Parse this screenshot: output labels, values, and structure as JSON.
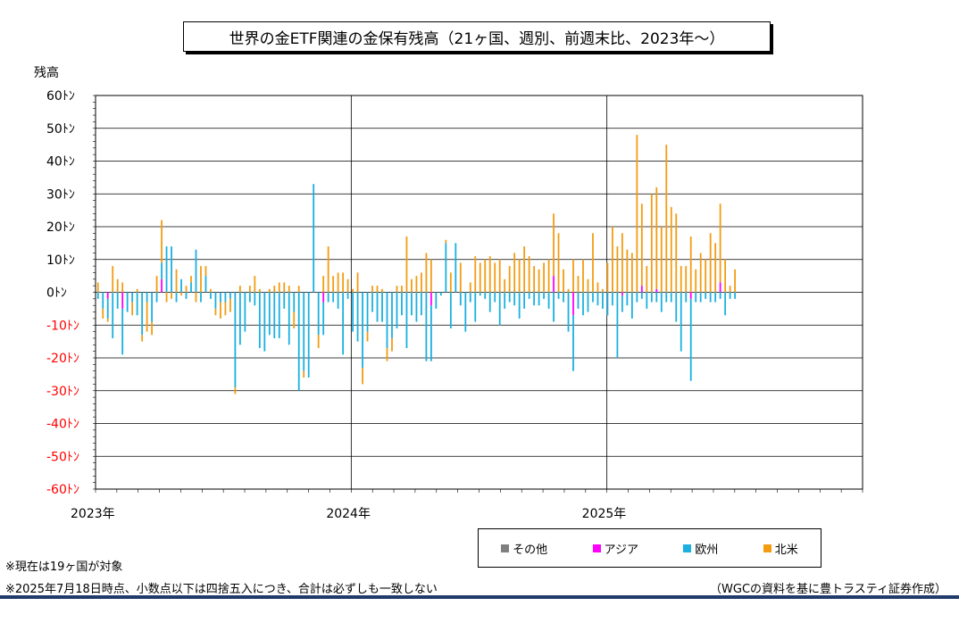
{
  "chart_data": {
    "type": "bar",
    "stacked": true,
    "title": "世界の金ETF関連の金保有残高（21ヶ国、週別、前週末比、2023年～）",
    "ylabel": "残高",
    "ylim": [
      -60,
      60
    ],
    "y_ticks": [
      {
        "value": 60,
        "label": "60ﾄﾝ"
      },
      {
        "value": 50,
        "label": "50ﾄﾝ"
      },
      {
        "value": 40,
        "label": "40ﾄﾝ"
      },
      {
        "value": 30,
        "label": "30ﾄﾝ"
      },
      {
        "value": 20,
        "label": "20ﾄﾝ"
      },
      {
        "value": 10,
        "label": "10ﾄﾝ"
      },
      {
        "value": 0,
        "label": "0ﾄﾝ"
      },
      {
        "value": -10,
        "label": "-10ﾄﾝ"
      },
      {
        "value": -20,
        "label": "-20ﾄﾝ"
      },
      {
        "value": -30,
        "label": "-30ﾄﾝ"
      },
      {
        "value": -40,
        "label": "-40ﾄﾝ"
      },
      {
        "value": -50,
        "label": "-50ﾄﾝ"
      },
      {
        "value": -60,
        "label": "-60ﾄﾝ"
      }
    ],
    "negative_tick_color": "#ff0000",
    "x_labels": [
      "2023年",
      "2024年",
      "2025年"
    ],
    "x_range_years": [
      2023,
      2026
    ],
    "grid": true,
    "legend_position": "bottom-right",
    "series": [
      {
        "name": "その他",
        "color": "#808080"
      },
      {
        "name": "アジア",
        "color": "#ff00ff"
      },
      {
        "name": "欧州",
        "color": "#1ab0e0"
      },
      {
        "name": "北米",
        "color": "#f39c12"
      }
    ],
    "week_values": [
      [
        0,
        0,
        -2,
        3
      ],
      [
        0,
        0,
        -5,
        -3
      ],
      [
        0,
        -2,
        -6,
        -1
      ],
      [
        0,
        0,
        -14,
        8
      ],
      [
        0,
        0,
        -5,
        4
      ],
      [
        0,
        -5,
        -14,
        3
      ],
      [
        0,
        0,
        -6,
        0
      ],
      [
        0,
        0,
        -3,
        -4
      ],
      [
        0,
        0,
        -7,
        1
      ],
      [
        0,
        0,
        -13,
        -2
      ],
      [
        0,
        0,
        -3,
        -9
      ],
      [
        0,
        0,
        -9,
        -4
      ],
      [
        0,
        0,
        -3,
        5
      ],
      [
        0,
        4,
        5,
        13
      ],
      [
        0,
        0,
        14,
        -3
      ],
      [
        0,
        0,
        14,
        -2
      ],
      [
        0,
        0,
        -3,
        7
      ],
      [
        0,
        0,
        4,
        -1
      ],
      [
        0,
        0,
        -2,
        2
      ],
      [
        0,
        0,
        3,
        2
      ],
      [
        0,
        0,
        13,
        -3
      ],
      [
        0,
        0,
        -3,
        8
      ],
      [
        0,
        0,
        5,
        3
      ],
      [
        0,
        0,
        -2,
        1
      ],
      [
        0,
        0,
        -5,
        -2
      ],
      [
        0,
        0,
        -3,
        -5
      ],
      [
        0,
        0,
        -3,
        -4
      ],
      [
        0,
        0,
        -2,
        -4
      ],
      [
        0,
        0,
        -29,
        -2
      ],
      [
        0,
        0,
        -16,
        2
      ],
      [
        0,
        0,
        -12,
        0
      ],
      [
        0,
        0,
        -3,
        2
      ],
      [
        0,
        0,
        -4,
        5
      ],
      [
        0,
        0,
        -17,
        1
      ],
      [
        0,
        0,
        -18,
        0
      ],
      [
        0,
        0,
        -13,
        1
      ],
      [
        0,
        0,
        -14,
        2
      ],
      [
        0,
        0,
        -14,
        3
      ],
      [
        0,
        0,
        -5,
        3
      ],
      [
        0,
        0,
        -16,
        2
      ],
      [
        0,
        0,
        -6,
        -5
      ],
      [
        0,
        0,
        -30,
        2
      ],
      [
        0,
        0,
        -24,
        -2
      ],
      [
        0,
        0,
        -26,
        0
      ],
      [
        0,
        0,
        33,
        0
      ],
      [
        0,
        0,
        -13,
        -4
      ],
      [
        0,
        -3,
        -10,
        5
      ],
      [
        0,
        0,
        -3,
        14
      ],
      [
        0,
        0,
        -3,
        5
      ],
      [
        0,
        0,
        -5,
        6
      ],
      [
        0,
        0,
        -19,
        6
      ],
      [
        0,
        0,
        -2,
        4
      ],
      [
        0,
        0,
        -12,
        1
      ],
      [
        0,
        0,
        -15,
        6
      ],
      [
        0,
        0,
        -23,
        -5
      ],
      [
        0,
        0,
        -12,
        -3
      ],
      [
        0,
        0,
        -6,
        2
      ],
      [
        0,
        0,
        -9,
        2
      ],
      [
        0,
        0,
        -9,
        1
      ],
      [
        0,
        0,
        -17,
        -4
      ],
      [
        0,
        0,
        -14,
        -4
      ],
      [
        0,
        0,
        -11,
        2
      ],
      [
        0,
        0,
        -7,
        2
      ],
      [
        0,
        0,
        -17,
        17
      ],
      [
        0,
        0,
        -7,
        4
      ],
      [
        0,
        0,
        -9,
        5
      ],
      [
        0,
        0,
        -7,
        6
      ],
      [
        0,
        0,
        -21,
        12
      ],
      [
        0,
        -4,
        -17,
        10
      ],
      [
        0,
        0,
        -5,
        0
      ],
      [
        0,
        0,
        -1,
        0
      ],
      [
        0,
        0,
        15,
        1
      ],
      [
        0,
        0,
        -11,
        6
      ],
      [
        0,
        0,
        15,
        0
      ],
      [
        0,
        0,
        -4,
        9
      ],
      [
        0,
        0,
        -12,
        0
      ],
      [
        0,
        0,
        -3,
        3
      ],
      [
        0,
        0,
        -9,
        11
      ],
      [
        0,
        0,
        -1,
        9
      ],
      [
        0,
        0,
        -2,
        10
      ],
      [
        0,
        0,
        -6,
        11
      ],
      [
        0,
        0,
        -3,
        9
      ],
      [
        0,
        0,
        -10,
        10
      ],
      [
        0,
        0,
        -5,
        4
      ],
      [
        0,
        0,
        -3,
        8
      ],
      [
        0,
        0,
        -4,
        12
      ],
      [
        0,
        0,
        -8,
        10
      ],
      [
        0,
        0,
        -5,
        14
      ],
      [
        0,
        0,
        -2,
        11
      ],
      [
        0,
        0,
        -4,
        8
      ],
      [
        0,
        0,
        -4,
        7
      ],
      [
        0,
        0,
        -2,
        9
      ],
      [
        0,
        0,
        -5,
        10
      ],
      [
        0,
        5,
        -9,
        19
      ],
      [
        0,
        0,
        -2,
        18
      ],
      [
        0,
        0,
        -3,
        7
      ],
      [
        0,
        0,
        -12,
        1
      ],
      [
        0,
        -7,
        -17,
        10
      ],
      [
        0,
        0,
        -5,
        5
      ],
      [
        0,
        0,
        -7,
        10
      ],
      [
        0,
        0,
        -6,
        4
      ],
      [
        0,
        0,
        -3,
        18
      ],
      [
        0,
        0,
        -4,
        3
      ],
      [
        0,
        0,
        -5,
        1
      ],
      [
        0,
        0,
        -7,
        9
      ],
      [
        0,
        0,
        -4,
        20
      ],
      [
        0,
        0,
        -20,
        14
      ],
      [
        0,
        -1,
        -5,
        18
      ],
      [
        0,
        0,
        -4,
        13
      ],
      [
        0,
        0,
        -8,
        12
      ],
      [
        0,
        0,
        -3,
        48
      ],
      [
        0,
        2,
        -2,
        25
      ],
      [
        0,
        0,
        -5,
        8
      ],
      [
        0,
        0,
        -3,
        30
      ],
      [
        0,
        1,
        -3,
        31
      ],
      [
        0,
        0,
        -6,
        20
      ],
      [
        0,
        0,
        -3,
        45
      ],
      [
        0,
        0,
        -3,
        26
      ],
      [
        0,
        0,
        -9,
        24
      ],
      [
        0,
        0,
        -18,
        8
      ],
      [
        0,
        0,
        -3,
        8
      ],
      [
        0,
        -2,
        -25,
        17
      ],
      [
        0,
        0,
        -3,
        7
      ],
      [
        0,
        0,
        -3,
        12
      ],
      [
        0,
        0,
        -2,
        10
      ],
      [
        0,
        0,
        -3,
        18
      ],
      [
        0,
        0,
        -3,
        15
      ],
      [
        0,
        3,
        -2,
        24
      ],
      [
        0,
        0,
        -7,
        10
      ],
      [
        0,
        0,
        -2,
        2
      ],
      [
        0,
        0,
        -2,
        7
      ]
    ]
  },
  "legend": {
    "other": "その他",
    "asia": "アジア",
    "europe": "欧州",
    "na": "北米"
  },
  "notes": {
    "note1": "※現在は19ヶ国が対象",
    "note2": "※2025年7月18日時点、小数点以下は四捨五入につき、合計は必ずしも一致しない",
    "source": "（WGCの資料を基に豊トラスティ証券作成）"
  }
}
